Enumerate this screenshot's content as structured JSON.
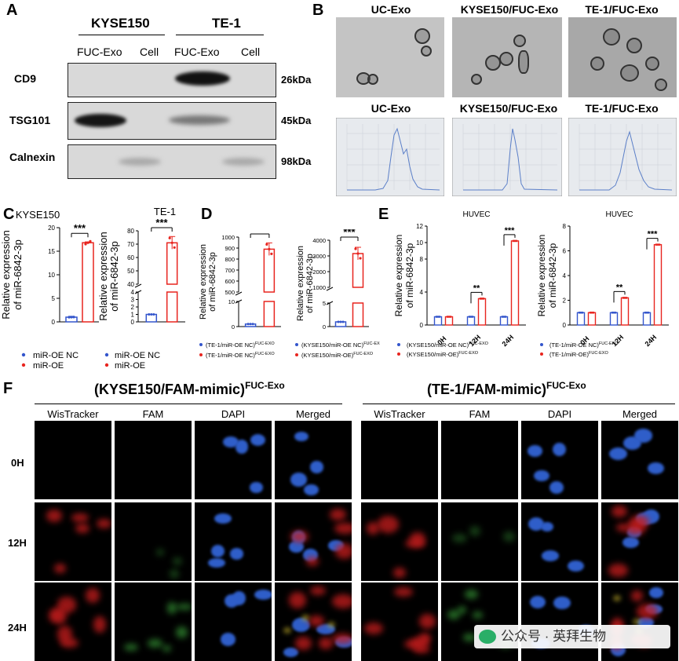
{
  "panelA": {
    "letter": "A",
    "groups": [
      "KYSE150",
      "TE-1"
    ],
    "columns": [
      "FUC-Exo",
      "Cell",
      "FUC-Exo",
      "Cell"
    ],
    "rows": [
      {
        "name": "CD9",
        "mw": "26kDa"
      },
      {
        "name": "TSG101",
        "mw": "45kDa"
      },
      {
        "name": "Calnexin",
        "mw": "98kDa"
      }
    ]
  },
  "panelB": {
    "letter": "B",
    "tem_titles": [
      "UC-Exo",
      "KYSE150/FUC-Exo",
      "TE-1/FUC-Exo"
    ],
    "nta_titles": [
      "UC-Exo",
      "KYSE150/FUC-Exo",
      "TE-1/FUC-Exo"
    ]
  },
  "panelC": {
    "letter": "C"
  },
  "panelD": {
    "letter": "D"
  },
  "panelE": {
    "letter": "E"
  },
  "panelF": {
    "letter": "F",
    "group_left": "(KYSE150/FAM-mimic)",
    "group_right": "(TE-1/FAM-mimic)",
    "group_sup": "FUC-Exo",
    "channels": [
      "WisTracker",
      "FAM",
      "DAPI",
      "Merged"
    ],
    "timepoints": [
      "0H",
      "12H",
      "24H"
    ]
  },
  "watermark": "公众号 · 英拜生物",
  "chart_data": [
    {
      "id": "C1",
      "type": "bar",
      "title": "KYSE150",
      "ylabel": "Relative expression of miR-6842-3p",
      "ylim": [
        0,
        20
      ],
      "yticks": [
        0,
        5,
        10,
        15,
        20
      ],
      "series": [
        {
          "name": "miR-OE NC",
          "values": [
            1.0
          ],
          "color": "#3355cc"
        },
        {
          "name": "miR-OE",
          "values": [
            16.8
          ],
          "color": "#e8251f"
        }
      ],
      "significance": "***",
      "legend": [
        "miR-OE NC",
        "miR-OE"
      ]
    },
    {
      "id": "C2",
      "type": "bar",
      "title": "TE-1",
      "ylabel": "Relative expression of miR-6842-3p",
      "ylim": [
        0,
        80
      ],
      "yticks_low": [
        0,
        1,
        2,
        3,
        4
      ],
      "yticks_high": [
        40,
        50,
        60,
        70,
        80
      ],
      "series": [
        {
          "name": "miR-OE NC",
          "values": [
            1.0
          ],
          "color": "#3355cc"
        },
        {
          "name": "miR-OE",
          "values": [
            71
          ]
        }
      ],
      "significance": "***",
      "legend": [
        "miR-OE NC",
        "miR-OE"
      ]
    },
    {
      "id": "D1",
      "type": "bar",
      "ylabel": "Relative expression of miR-6842-3p",
      "ylim": [
        0,
        1000
      ],
      "yticks_low": [
        0,
        10
      ],
      "yticks_high": [
        500,
        600,
        700,
        800,
        900,
        1000
      ],
      "series": [
        {
          "name": "(TE-1/miR-OE NC)",
          "values": [
            1.0
          ],
          "color": "#3355cc"
        },
        {
          "name": "(TE-1/miR-OE NC)",
          "values": [
            890
          ],
          "color": "#e8251f"
        }
      ],
      "significance": "***",
      "legend": [
        "(TE-1/miR-OE NC)",
        "(TE-1/miR-OE NC)"
      ],
      "legend_sup": "FUC-EXO"
    },
    {
      "id": "D2",
      "type": "bar",
      "ylabel": "Relative expression of miR-6842-3p",
      "ylim": [
        0,
        4000
      ],
      "yticks_low": [
        0,
        5
      ],
      "yticks_high": [
        1000,
        2000,
        3000,
        4000
      ],
      "series": [
        {
          "name": "(KYSE150/miR-OE NC)",
          "values": [
            1.0
          ],
          "color": "#3355cc"
        },
        {
          "name": "(KYSE150/miR-OE)",
          "values": [
            3150
          ],
          "color": "#e8251f"
        }
      ],
      "significance": "***",
      "legend": [
        "(KYSE150/miR-OE NC)",
        "(KYSE150/miR-OE)"
      ],
      "legend_sup": "FUC-EXO"
    },
    {
      "id": "E1",
      "type": "bar",
      "title": "HUVEC",
      "ylabel": "Relative expression of miR-6842-3p",
      "ylim": [
        0,
        12
      ],
      "yticks": [
        0,
        4,
        8,
        10,
        12
      ],
      "categories": [
        "0H",
        "12H",
        "24H"
      ],
      "series": [
        {
          "name": "(KYSE150/miR-OE NC)",
          "values": [
            1.0,
            1.0,
            1.0
          ],
          "color": "#3355cc"
        },
        {
          "name": "(KYSE150/miR-OE)",
          "values": [
            1.0,
            3.2,
            10.2
          ],
          "color": "#e8251f"
        }
      ],
      "significance": [
        "",
        "**",
        "***"
      ],
      "legend": [
        "(KYSE150/miR-OE NC)",
        "(KYSE150/miR-OE)"
      ],
      "legend_sup": "FUC-EXO"
    },
    {
      "id": "E2",
      "type": "bar",
      "title": "HUVEC",
      "ylabel": "Relative expression of miR-6842-3p",
      "ylim": [
        0,
        8
      ],
      "yticks": [
        0,
        2,
        4,
        6,
        8
      ],
      "categories": [
        "0H",
        "12H",
        "24H"
      ],
      "series": [
        {
          "name": "(TE-1/miR-OE NC)",
          "values": [
            1.0,
            1.0,
            1.0
          ],
          "color": "#3355cc"
        },
        {
          "name": "(TE-1/miR-OE)",
          "values": [
            1.0,
            2.2,
            6.5
          ],
          "color": "#e8251f"
        }
      ],
      "significance": [
        "",
        "**",
        "***"
      ],
      "legend": [
        "(TE-1/miR-OE NC)",
        "(TE-1/miR-OE)"
      ],
      "legend_sup": "FUC-EXO"
    }
  ]
}
